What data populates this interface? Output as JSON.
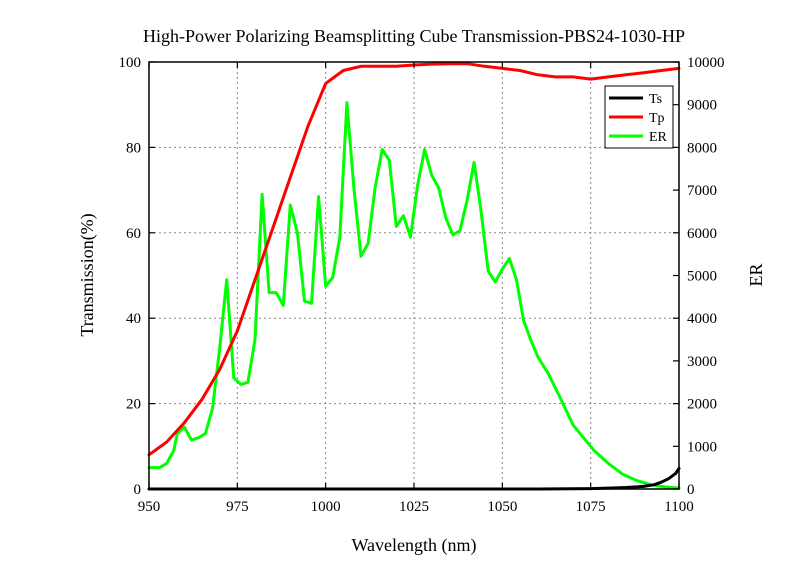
{
  "chart_data": {
    "type": "line",
    "title": "High-Power Polarizing Beamsplitting Cube Transmission-PBS24-1030-HP",
    "xlabel": "Wavelength (nm)",
    "ylabel": "Transmission(%)",
    "y2label": "ER",
    "xlim": [
      950,
      1100
    ],
    "ylim": [
      0,
      100
    ],
    "y2lim": [
      0,
      10000
    ],
    "x_ticks": [
      "950",
      "975",
      "1000",
      "1025",
      "1050",
      "1075",
      "1100"
    ],
    "y_ticks": [
      "0",
      "20",
      "40",
      "60",
      "80",
      "100"
    ],
    "y2_ticks": [
      "0",
      "1000",
      "2000",
      "3000",
      "4000",
      "5000",
      "6000",
      "7000",
      "8000",
      "9000",
      "10000"
    ],
    "grid": true,
    "legend_position": "top-right",
    "series": [
      {
        "name": "Ts",
        "axis": "left",
        "color": "#000000",
        "x": [
          950,
          960,
          970,
          980,
          990,
          1000,
          1010,
          1020,
          1030,
          1040,
          1050,
          1060,
          1070,
          1075,
          1080,
          1085,
          1090,
          1093,
          1095,
          1097,
          1099,
          1100
        ],
        "y": [
          0,
          0,
          0,
          0,
          0,
          0,
          0,
          0,
          0,
          0,
          0,
          0,
          0.05,
          0.1,
          0.2,
          0.35,
          0.6,
          1.0,
          1.6,
          2.4,
          3.6,
          4.8
        ]
      },
      {
        "name": "Tp",
        "axis": "left",
        "color": "#ff0000",
        "x": [
          950,
          955,
          960,
          965,
          970,
          975,
          980,
          985,
          990,
          995,
          1000,
          1005,
          1010,
          1015,
          1020,
          1025,
          1030,
          1035,
          1040,
          1045,
          1050,
          1055,
          1060,
          1065,
          1070,
          1075,
          1080,
          1085,
          1090,
          1095,
          1100
        ],
        "y": [
          8,
          11,
          15.5,
          21,
          28,
          37,
          49,
          61,
          73,
          85,
          95,
          98,
          99,
          99,
          99,
          99.3,
          99.5,
          99.6,
          99.6,
          99,
          98.5,
          98,
          97,
          96.5,
          96.5,
          96,
          96.5,
          97,
          97.5,
          98,
          98.5
        ]
      },
      {
        "name": "ER",
        "axis": "right",
        "color": "#00ff00",
        "x": [
          950,
          953,
          955,
          957,
          958,
          960,
          962,
          964,
          966,
          968,
          970,
          972,
          974,
          976,
          978,
          980,
          982,
          984,
          986,
          988,
          990,
          992,
          994,
          996,
          998,
          1000,
          1002,
          1004,
          1006,
          1008,
          1010,
          1012,
          1014,
          1016,
          1018,
          1020,
          1022,
          1024,
          1026,
          1028,
          1030,
          1032,
          1034,
          1036,
          1038,
          1040,
          1042,
          1044,
          1046,
          1048,
          1050,
          1052,
          1054,
          1056,
          1058,
          1060,
          1063,
          1066,
          1070,
          1073,
          1076,
          1080,
          1084,
          1088,
          1092,
          1096,
          1100
        ],
        "y": [
          500,
          500,
          600,
          900,
          1300,
          1450,
          1150,
          1200,
          1300,
          1900,
          3300,
          4900,
          2600,
          2450,
          2500,
          3500,
          6900,
          4600,
          4600,
          4300,
          6650,
          6000,
          4400,
          4350,
          6850,
          4750,
          4950,
          5900,
          9050,
          7050,
          5450,
          5750,
          7050,
          7950,
          7700,
          6150,
          6400,
          5900,
          7100,
          7950,
          7350,
          7050,
          6350,
          5950,
          6050,
          6750,
          7650,
          6500,
          5100,
          4850,
          5150,
          5400,
          4900,
          3950,
          3500,
          3100,
          2700,
          2200,
          1500,
          1200,
          900,
          600,
          350,
          200,
          100,
          50,
          20
        ]
      }
    ]
  }
}
